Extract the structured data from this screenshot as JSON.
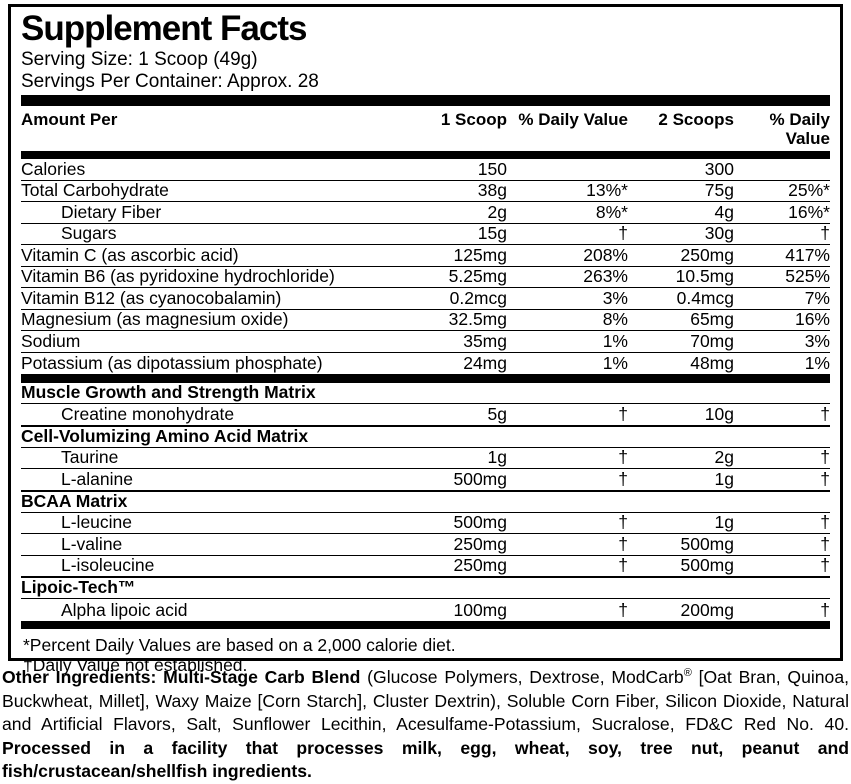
{
  "panel": {
    "title": "Supplement Facts",
    "serving_size": "Serving Size: 1 Scoop (49g)",
    "servings_per_container": "Servings Per Container: Approx. 28"
  },
  "table": {
    "columns": [
      "Amount Per",
      "1 Scoop",
      "% Daily Value",
      "2 Scoops",
      "% Daily Value"
    ],
    "main_rows": [
      {
        "name": "Calories",
        "indent": 0,
        "values": [
          "150",
          "",
          "300",
          ""
        ]
      },
      {
        "name": "Total Carbohydrate",
        "indent": 0,
        "values": [
          "38g",
          "13%*",
          "75g",
          "25%*"
        ]
      },
      {
        "name": "Dietary Fiber",
        "indent": 1,
        "values": [
          "2g",
          "8%*",
          "4g",
          "16%*"
        ]
      },
      {
        "name": "Sugars",
        "indent": 1,
        "values": [
          "15g",
          "†",
          "30g",
          "†"
        ]
      },
      {
        "name": "Vitamin C (as ascorbic acid)",
        "indent": 0,
        "values": [
          "125mg",
          "208%",
          "250mg",
          "417%"
        ]
      },
      {
        "name": "Vitamin B6 (as pyridoxine hydrochloride)",
        "indent": 0,
        "values": [
          "5.25mg",
          "263%",
          "10.5mg",
          "525%"
        ]
      },
      {
        "name": "Vitamin B12 (as cyanocobalamin)",
        "indent": 0,
        "values": [
          "0.2mcg",
          "3%",
          "0.4mcg",
          "7%"
        ]
      },
      {
        "name": "Magnesium (as magnesium oxide)",
        "indent": 0,
        "values": [
          "32.5mg",
          "8%",
          "65mg",
          "16%"
        ]
      },
      {
        "name": "Sodium",
        "indent": 0,
        "values": [
          "35mg",
          "1%",
          "70mg",
          "3%"
        ]
      },
      {
        "name": "Potassium (as dipotassium phosphate)",
        "indent": 0,
        "values": [
          "24mg",
          "1%",
          "48mg",
          "1%"
        ]
      }
    ],
    "matrix_sections": [
      {
        "title": "Muscle Growth and Strength Matrix",
        "rows": [
          {
            "name": "Creatine monohydrate",
            "indent": 1,
            "values": [
              "5g",
              "†",
              "10g",
              "†"
            ]
          }
        ]
      },
      {
        "title": "Cell-Volumizing Amino Acid Matrix",
        "rows": [
          {
            "name": "Taurine",
            "indent": 1,
            "values": [
              "1g",
              "†",
              "2g",
              "†"
            ]
          },
          {
            "name": "L-alanine",
            "indent": 1,
            "values": [
              "500mg",
              "†",
              "1g",
              "†"
            ]
          }
        ]
      },
      {
        "title": "BCAA Matrix",
        "rows": [
          {
            "name": "L-leucine",
            "indent": 1,
            "values": [
              "500mg",
              "†",
              "1g",
              "†"
            ]
          },
          {
            "name": "L-valine",
            "indent": 1,
            "values": [
              "250mg",
              "†",
              "500mg",
              "†"
            ]
          },
          {
            "name": "L-isoleucine",
            "indent": 1,
            "values": [
              "250mg",
              "†",
              "500mg",
              "†"
            ]
          }
        ]
      },
      {
        "title": "Lipoic-Tech™",
        "rows": [
          {
            "name": "Alpha lipoic acid",
            "indent": 1,
            "values": [
              "100mg",
              "†",
              "200mg",
              "†"
            ]
          }
        ]
      }
    ]
  },
  "footnotes": [
    "*Percent Daily Values are based on a 2,000 calorie diet.",
    "†Daily Value not established."
  ],
  "other_ingredients_segments": [
    {
      "text": "Other Ingredients: Multi-Stage Carb Blend",
      "bold": true,
      "sup": false
    },
    {
      "text": " (Glucose Polymers, Dextrose, ModCarb",
      "bold": false,
      "sup": false
    },
    {
      "text": "®",
      "bold": false,
      "sup": true
    },
    {
      "text": " [Oat Bran, Quinoa, Buckwheat, Millet], Waxy Maize [Corn Starch], Cluster Dextrin), Soluble Corn Fiber, Silicon Dioxide, Natural and Artificial Flavors, Salt, Sunflower Lecithin, Acesulfame-Potassium, Sucralose, FD&C Red No. 40. ",
      "bold": false,
      "sup": false
    },
    {
      "text": "Processed in a facility that processes milk, egg, wheat, soy, tree nut, peanut and fish/crustacean/shellfish ingredients.",
      "bold": true,
      "sup": false
    }
  ],
  "colors": {
    "ink": "#000000",
    "paper": "#ffffff"
  }
}
